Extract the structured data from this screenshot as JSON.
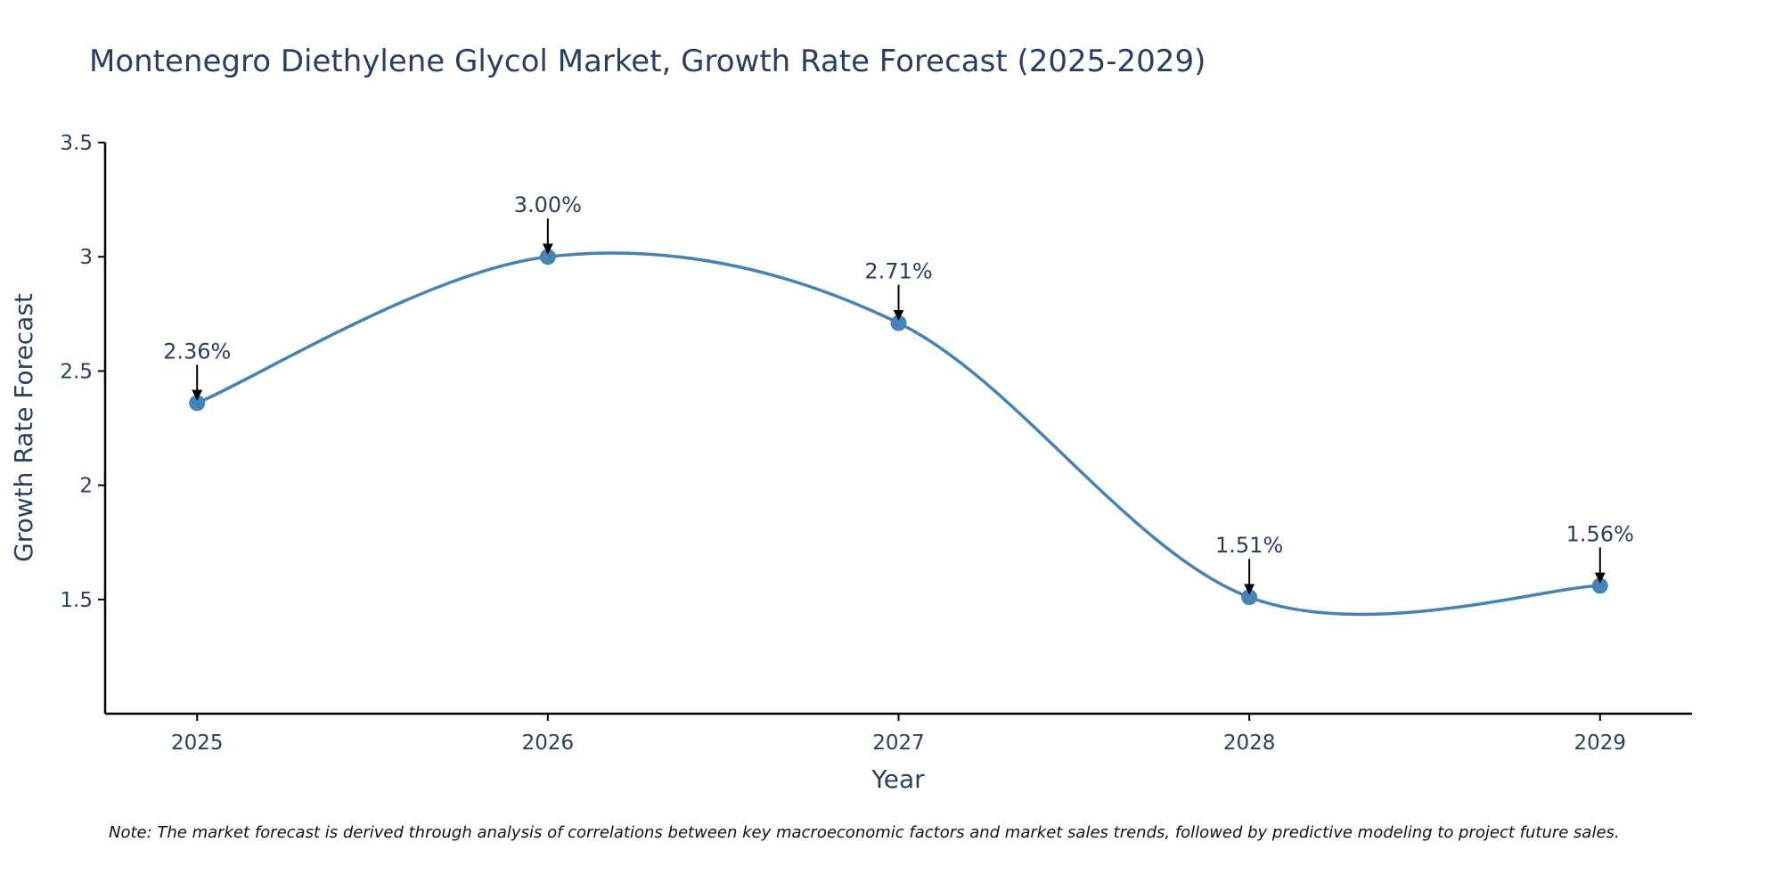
{
  "chart_data": {
    "type": "line",
    "title": "Montenegro Diethylene Glycol Market, Growth Rate Forecast (2025-2029)",
    "xlabel": "Year",
    "ylabel": "Growth Rate Forecast",
    "categories": [
      "2025",
      "2026",
      "2027",
      "2028",
      "2029"
    ],
    "x": [
      2025,
      2026,
      2027,
      2028,
      2029
    ],
    "series": [
      {
        "name": "Growth Rate Forecast",
        "values": [
          2.36,
          3.0,
          2.71,
          1.51,
          1.56
        ],
        "color": "#4682b4",
        "line_shape": "spline"
      }
    ],
    "data_labels": [
      "2.36%",
      "3.00%",
      "2.71%",
      "1.51%",
      "1.56%"
    ],
    "ylim": [
      1.0,
      3.5
    ],
    "yticks": [
      1.5,
      2,
      2.5,
      3,
      3.5
    ],
    "ytick_labels": [
      "1.5",
      "2",
      "2.5",
      "3",
      "3.5"
    ],
    "xlim": [
      2024.7378,
      2029.2622
    ],
    "grid": false,
    "legend": "none",
    "note": "Note: The market forecast is derived through analysis of correlations between key macroeconomic factors and market sales trends, followed by predictive modeling to project future sales."
  },
  "colors": {
    "line": "#4682b4",
    "marker": "#4682b4",
    "axis": "#000000",
    "text": "#2a3f5f",
    "arrow": "#000000"
  }
}
